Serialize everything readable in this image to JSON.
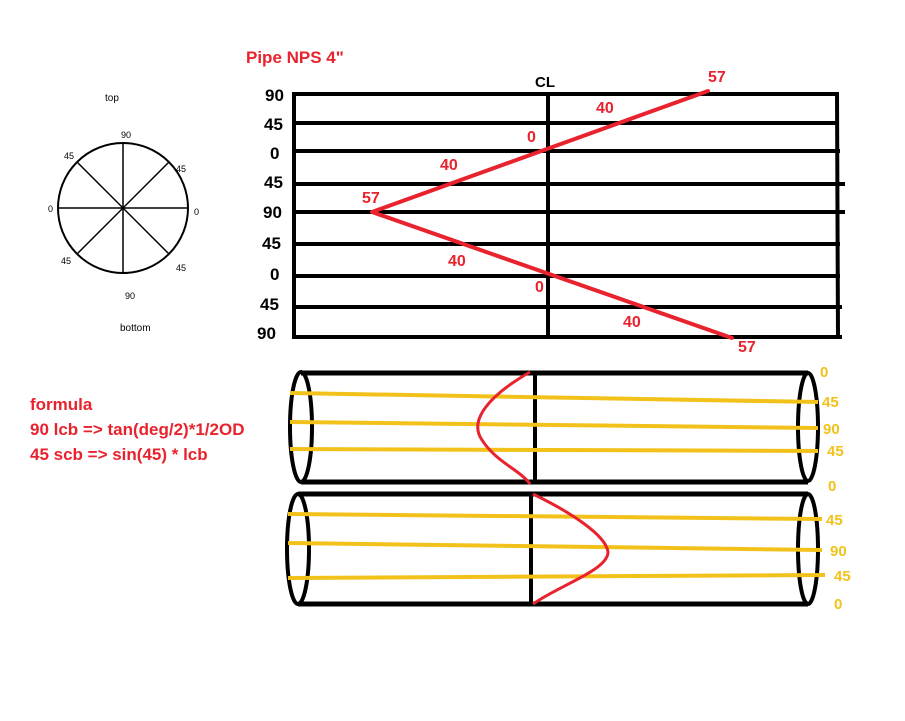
{
  "title": "Pipe NPS 4\"",
  "cl_label": "CL",
  "compass": {
    "top_label": "top",
    "bottom_label": "bottom",
    "deg_top": "90",
    "deg_upper_left": "45",
    "deg_upper_right": "45",
    "deg_left": "0",
    "deg_right": "0",
    "deg_lower_left": "45",
    "deg_lower_right": "45",
    "deg_bottom": "90"
  },
  "template_grid": {
    "row_labels": [
      "90",
      "45",
      "0",
      "45",
      "90",
      "45",
      "0",
      "45",
      "90"
    ],
    "red_values": {
      "upper_end": "57",
      "upper_mid": "40",
      "upper_zero": "0",
      "left_mid_upper": "40",
      "apex": "57",
      "left_mid_lower": "40",
      "lower_zero": "0",
      "lower_mid": "40",
      "lower_end": "57"
    }
  },
  "formula": {
    "heading": "formula",
    "line1": "90 lcb => tan(deg/2)*1/2OD",
    "line2": "45 scb => sin(45) * lcb"
  },
  "pipe_labels": {
    "top_pipe": [
      "0",
      "45",
      "90",
      "45",
      "0"
    ],
    "bottom_pipe": [
      "45",
      "90",
      "45",
      "0"
    ]
  },
  "colors": {
    "red": "#e8232e",
    "yellow": "#f2c21a",
    "black": "#000000"
  }
}
